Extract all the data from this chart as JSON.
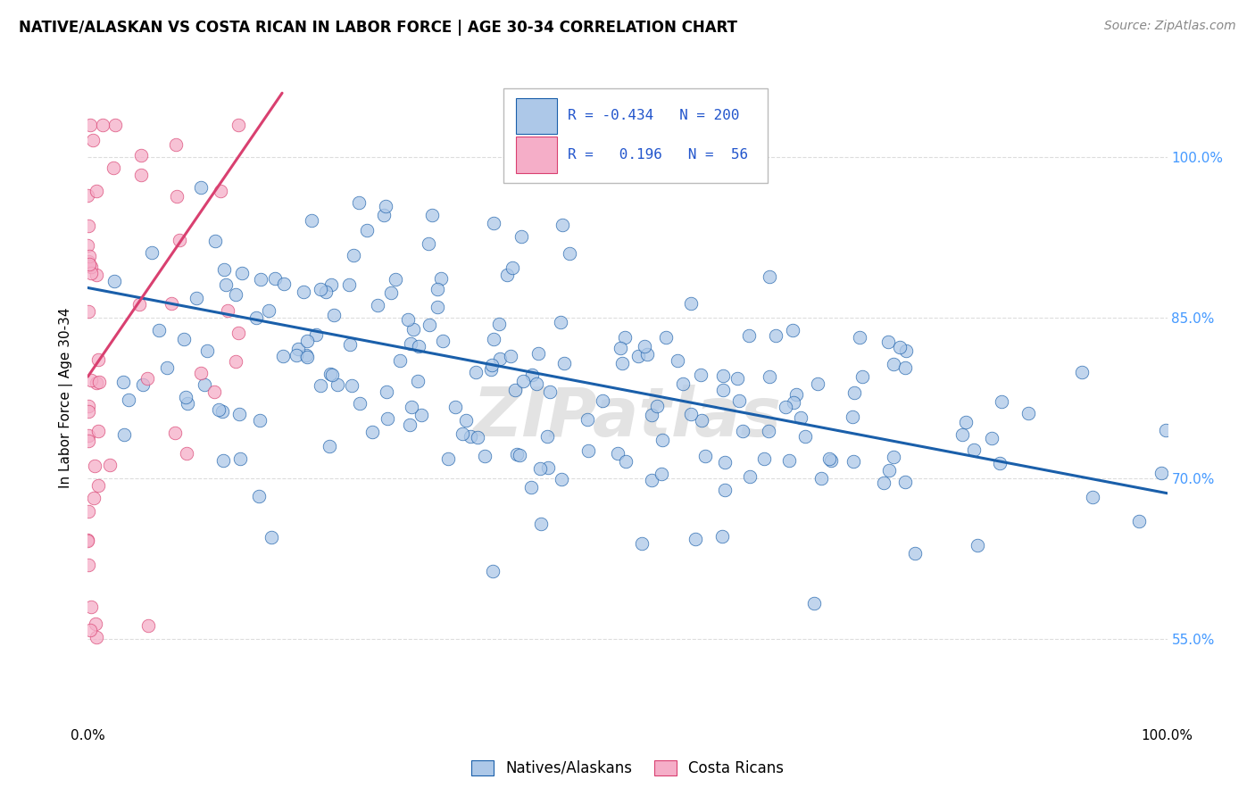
{
  "title": "NATIVE/ALASKAN VS COSTA RICAN IN LABOR FORCE | AGE 30-34 CORRELATION CHART",
  "source": "Source: ZipAtlas.com",
  "ylabel": "In Labor Force | Age 30-34",
  "watermark": "ZIPatlas",
  "blue_R": -0.434,
  "blue_N": 200,
  "pink_R": 0.196,
  "pink_N": 56,
  "blue_color": "#adc8e8",
  "pink_color": "#f5aec8",
  "blue_line_color": "#1a5faa",
  "pink_line_color": "#d94070",
  "legend_label_blue": "Natives/Alaskans",
  "legend_label_pink": "Costa Ricans",
  "xlim": [
    0.0,
    1.0
  ],
  "ylim": [
    0.47,
    1.08
  ],
  "yticks": [
    0.55,
    0.7,
    0.85,
    1.0
  ],
  "ytick_labels": [
    "55.0%",
    "70.0%",
    "85.0%",
    "100.0%"
  ],
  "grid_color": "#dddddd",
  "background_color": "#ffffff",
  "blue_line_y0": 0.878,
  "blue_line_y1": 0.686,
  "pink_line_x0": 0.0,
  "pink_line_x1": 0.18,
  "pink_line_y0": 0.795,
  "pink_line_y1": 1.06
}
